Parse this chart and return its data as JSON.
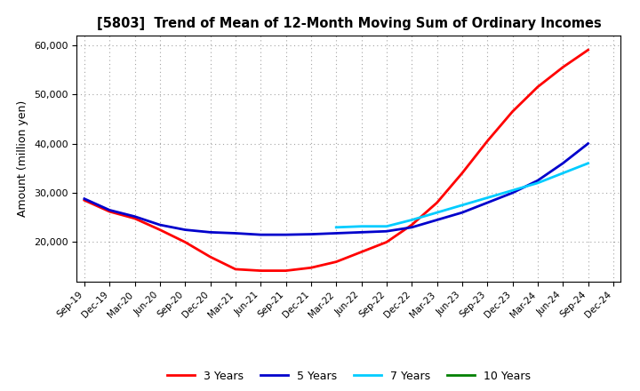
{
  "title": "[5803]  Trend of Mean of 12-Month Moving Sum of Ordinary Incomes",
  "ylabel": "Amount (million yen)",
  "background_color": "#ffffff",
  "grid_color": "#999999",
  "ylim": [
    12000,
    62000
  ],
  "yticks": [
    20000,
    30000,
    40000,
    50000,
    60000
  ],
  "ytick_labels": [
    "20,000",
    "30,000",
    "40,000",
    "50,000",
    "60,000"
  ],
  "x_labels": [
    "Sep-19",
    "Dec-19",
    "Mar-20",
    "Jun-20",
    "Sep-20",
    "Dec-20",
    "Mar-21",
    "Jun-21",
    "Sep-21",
    "Dec-21",
    "Mar-22",
    "Jun-22",
    "Sep-22",
    "Dec-22",
    "Mar-23",
    "Jun-23",
    "Sep-23",
    "Dec-23",
    "Mar-24",
    "Jun-24",
    "Sep-24",
    "Dec-24"
  ],
  "series": {
    "3 Years": {
      "color": "#ff0000",
      "values": [
        28500,
        26200,
        24800,
        22500,
        20000,
        17000,
        14500,
        14200,
        14200,
        14800,
        16000,
        18000,
        20000,
        23500,
        28000,
        34000,
        40500,
        46500,
        51500,
        55500,
        59000,
        null
      ]
    },
    "5 Years": {
      "color": "#0000cc",
      "values": [
        28800,
        26500,
        25200,
        23500,
        22500,
        22000,
        21800,
        21500,
        21500,
        21600,
        21800,
        22000,
        22200,
        23000,
        24500,
        26000,
        28000,
        30000,
        32500,
        36000,
        40000,
        null
      ]
    },
    "7 Years": {
      "color": "#00ccff",
      "values": [
        null,
        null,
        null,
        null,
        null,
        null,
        null,
        null,
        null,
        null,
        23000,
        23200,
        23200,
        24500,
        26000,
        27500,
        29000,
        30500,
        32000,
        34000,
        36000,
        null
      ]
    },
    "10 Years": {
      "color": "#008000",
      "values": [
        null,
        null,
        null,
        null,
        null,
        null,
        null,
        null,
        null,
        null,
        null,
        null,
        null,
        null,
        null,
        null,
        null,
        null,
        null,
        null,
        null,
        null
      ]
    }
  },
  "legend_order": [
    "3 Years",
    "5 Years",
    "7 Years",
    "10 Years"
  ]
}
